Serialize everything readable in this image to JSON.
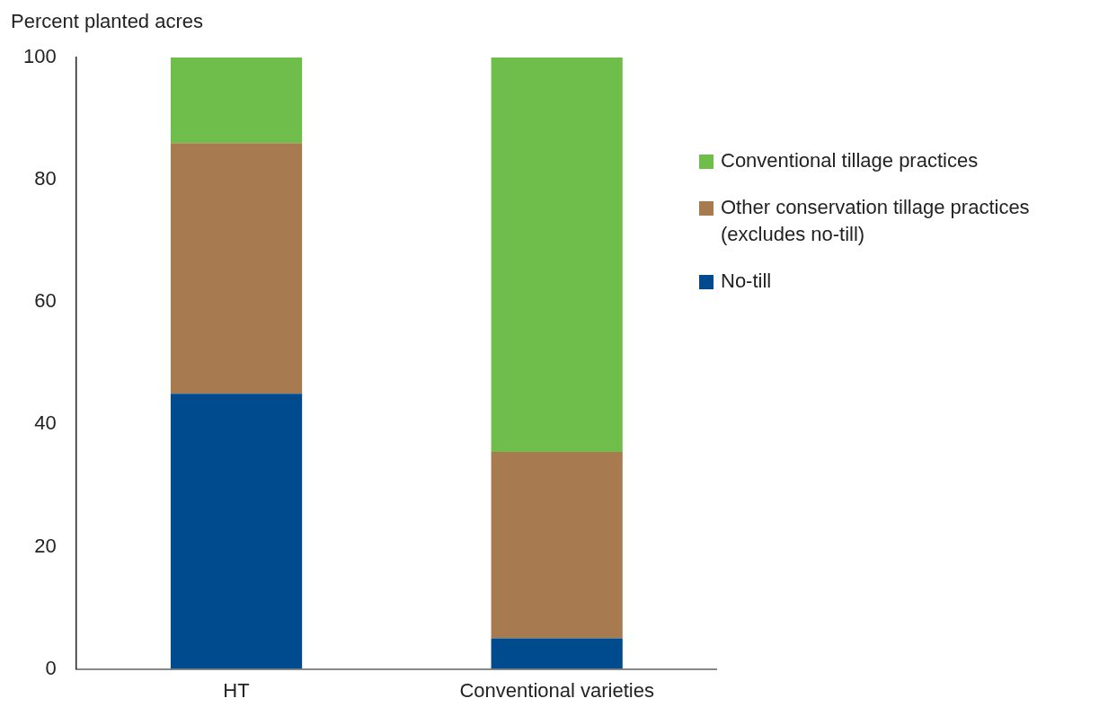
{
  "chart_data": {
    "type": "bar",
    "stacked": true,
    "ylabel": "Percent planted acres",
    "categories": [
      "HT",
      "Conventional varieties"
    ],
    "series": [
      {
        "name": "No-till",
        "color": "#004b8d",
        "values": [
          45,
          5
        ]
      },
      {
        "name": "Other conservation tillage practices (excludes no-till)",
        "color": "#a77b4f",
        "values": [
          41,
          30.5
        ]
      },
      {
        "name": "Conventional tillage practices",
        "color": "#6fbe4c",
        "values": [
          14,
          64.5
        ]
      }
    ],
    "ylim": [
      0,
      100
    ],
    "yticks": [
      0,
      20,
      40,
      60,
      80,
      100
    ],
    "grid": false,
    "legend": "right"
  }
}
